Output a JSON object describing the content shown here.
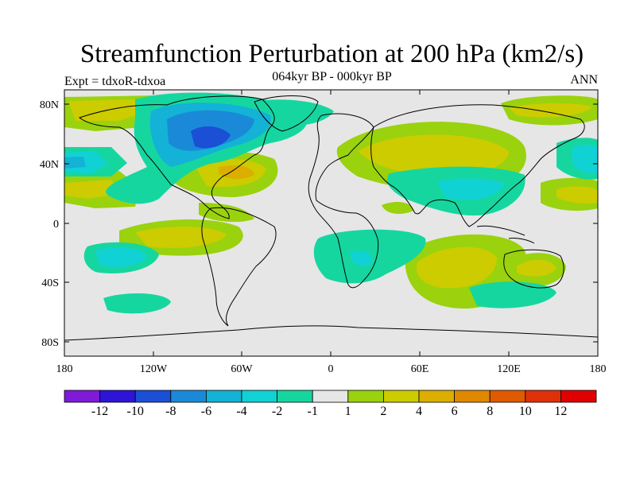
{
  "title": "Streamfunction Perturbation at 200 hPa (km2/s)",
  "subtitle": "064kyr BP - 000kyr BP",
  "left_label": "Expt = tdxoR-tdxoa",
  "right_label": "ANN",
  "lat_ticks": [
    "80N",
    "40N",
    "0",
    "40S",
    "80S"
  ],
  "lon_ticks": [
    "180",
    "120W",
    "60W",
    "0",
    "60E",
    "120E",
    "180"
  ],
  "colorbar": {
    "labels": [
      "-12",
      "-10",
      "-8",
      "-6",
      "-4",
      "-2",
      "-1",
      "1",
      "2",
      "4",
      "6",
      "8",
      "10",
      "12"
    ],
    "colors": [
      "#7f1bd8",
      "#2e14d8",
      "#1a4fd6",
      "#1a8ad8",
      "#13b2d6",
      "#10d2d4",
      "#16d6a0",
      "#e6e6e6",
      "#9ad20e",
      "#cccc00",
      "#dcae00",
      "#e08800",
      "#e05a00",
      "#e0300a",
      "#e00000"
    ]
  },
  "chart_data": {
    "type": "heatmap",
    "title": "Streamfunction Perturbation at 200 hPa (km2/s)",
    "subtitle": "064kyr BP - 000kyr BP",
    "experiment": "Expt = tdxoR-tdxoa",
    "period": "ANN",
    "xlim": [
      -180,
      180
    ],
    "ylim": [
      -90,
      90
    ],
    "x_ticks": [
      "180",
      "120W",
      "60W",
      "0",
      "60E",
      "120E",
      "180"
    ],
    "y_ticks": [
      "80N",
      "40N",
      "0",
      "40S",
      "80S"
    ],
    "levels": [
      -12,
      -10,
      -8,
      -6,
      -4,
      -2,
      -1,
      1,
      2,
      4,
      6,
      8,
      10,
      12
    ],
    "regions": [
      {
        "region": "North America / North Atlantic high latitudes",
        "min_level": -8
      },
      {
        "region": "Western North Atlantic subtropics",
        "max_level": 6
      },
      {
        "region": "Eurasia mid-latitudes",
        "max_level": 4
      },
      {
        "region": "Southern Indian Ocean",
        "max_level": 4
      },
      {
        "region": "Eastern North Pacific",
        "min_level": -4
      },
      {
        "region": "South Pacific",
        "min_level": -4
      }
    ]
  }
}
